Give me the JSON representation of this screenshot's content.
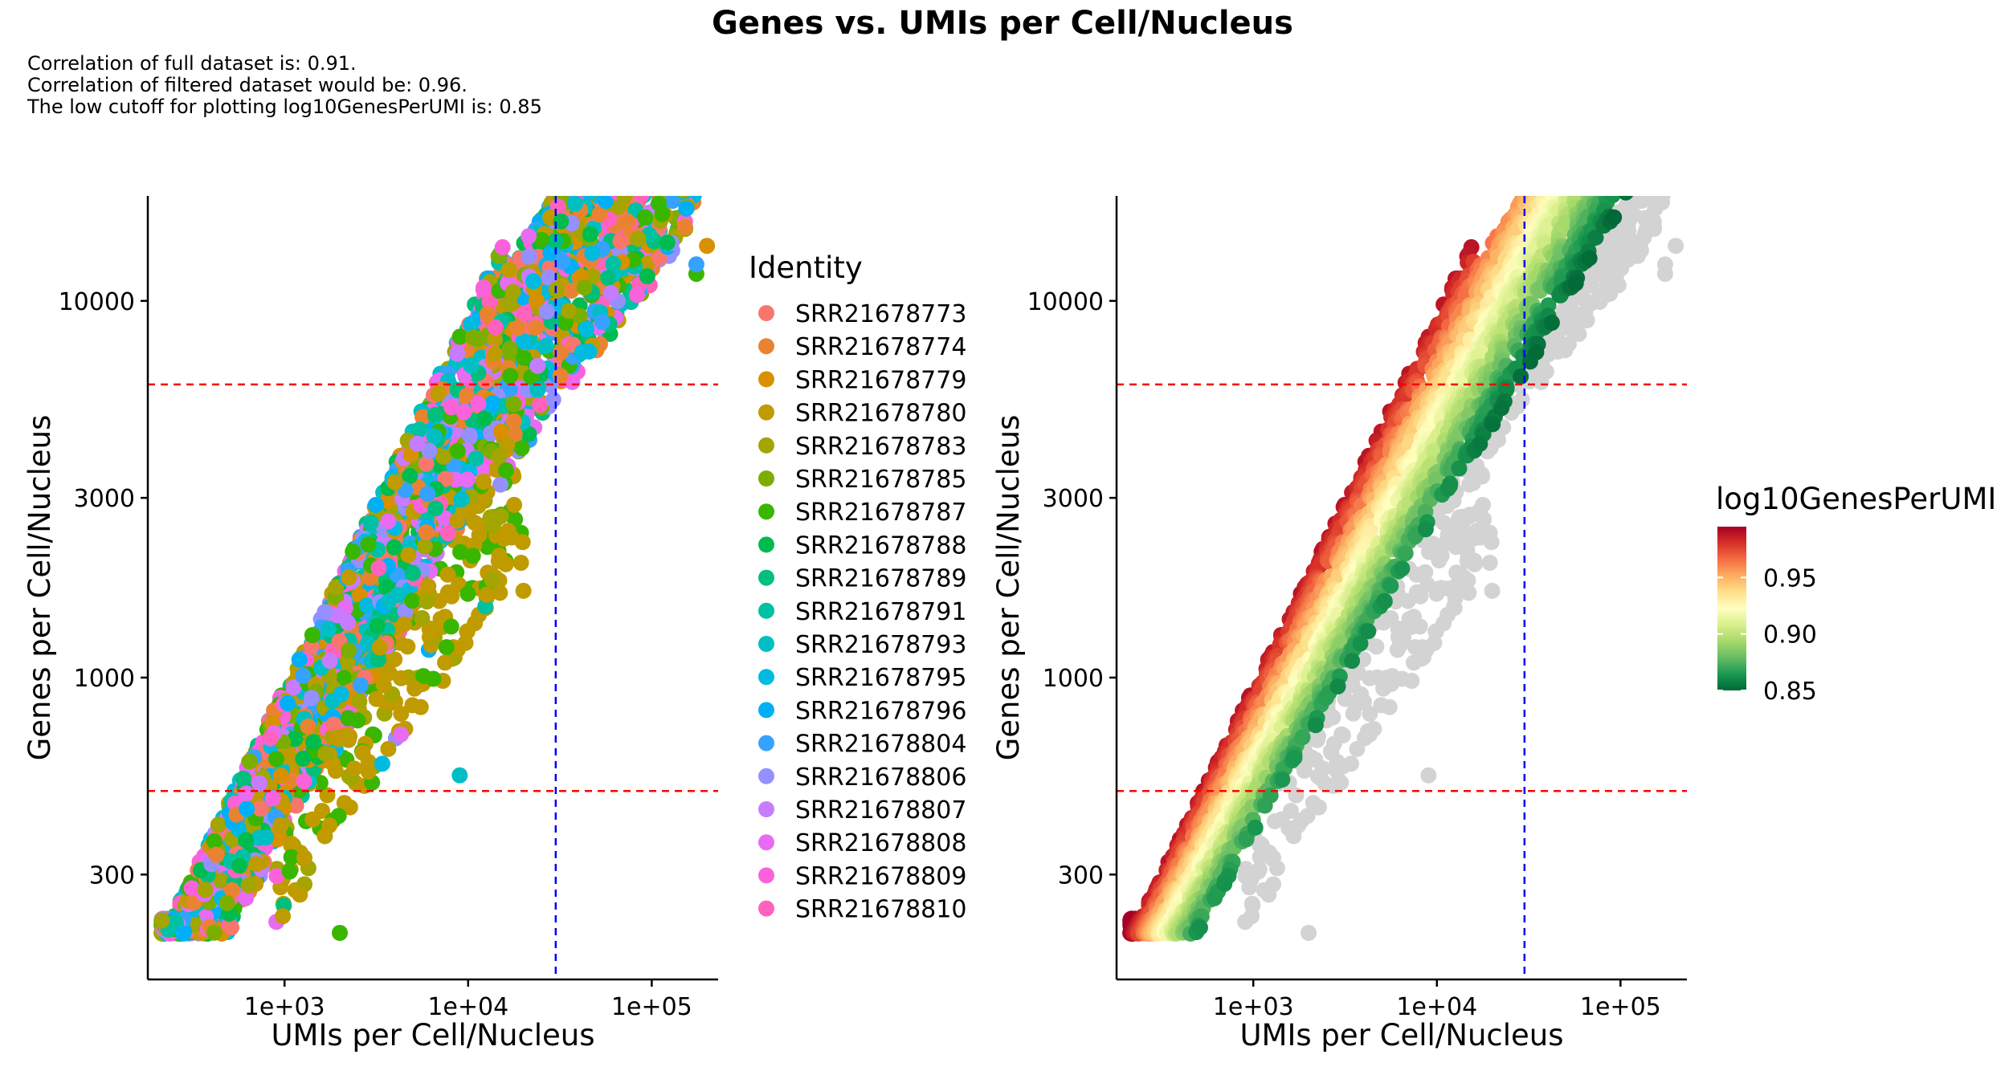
{
  "title": "Genes vs. UMIs per Cell/Nucleus",
  "subtitle_lines": [
    "Correlation of full dataset is: 0.91.",
    "Correlation of filtered dataset would be: 0.96.",
    "The low cutoff for plotting log10GenesPerUMI is: 0.85"
  ],
  "chart_data": [
    {
      "type": "scatter",
      "panel": "left",
      "xlabel": "UMIs per Cell/Nucleus",
      "ylabel": "Genes per Cell/Nucleus",
      "x_scale": "log10",
      "y_scale": "log10",
      "xlim": [
        180,
        230000
      ],
      "ylim": [
        158,
        19000
      ],
      "x_ticks": [
        {
          "value": 1000,
          "label": "1e+03"
        },
        {
          "value": 10000,
          "label": "1e+04"
        },
        {
          "value": 100000,
          "label": "1e+05"
        }
      ],
      "y_ticks": [
        {
          "value": 300,
          "label": "300"
        },
        {
          "value": 1000,
          "label": "1000"
        },
        {
          "value": 3000,
          "label": "3000"
        },
        {
          "value": 10000,
          "label": "10000"
        }
      ],
      "reference_lines": {
        "horizontal": [
          500,
          6000
        ],
        "vertical": [
          30000
        ],
        "h_color": "#ff0000",
        "v_color": "#0000ff"
      },
      "color_by": "Identity",
      "legend_title": "Identity",
      "series": [
        {
          "name": "SRR21678773",
          "color": "#F8766D"
        },
        {
          "name": "SRR21678774",
          "color": "#EA8331"
        },
        {
          "name": "SRR21678779",
          "color": "#D89000"
        },
        {
          "name": "SRR21678780",
          "color": "#C09B00"
        },
        {
          "name": "SRR21678783",
          "color": "#A3A500"
        },
        {
          "name": "SRR21678785",
          "color": "#7CAE00"
        },
        {
          "name": "SRR21678787",
          "color": "#39B600"
        },
        {
          "name": "SRR21678788",
          "color": "#00BB4E"
        },
        {
          "name": "SRR21678789",
          "color": "#00BF7D"
        },
        {
          "name": "SRR21678791",
          "color": "#00C1A3"
        },
        {
          "name": "SRR21678793",
          "color": "#00BFC4"
        },
        {
          "name": "SRR21678795",
          "color": "#00BAE0"
        },
        {
          "name": "SRR21678796",
          "color": "#00B0F6"
        },
        {
          "name": "SRR21678804",
          "color": "#35A2FF"
        },
        {
          "name": "SRR21678806",
          "color": "#9590FF"
        },
        {
          "name": "SRR21678807",
          "color": "#C77CFF"
        },
        {
          "name": "SRR21678808",
          "color": "#E76BF3"
        },
        {
          "name": "SRR21678809",
          "color": "#FA62DB"
        },
        {
          "name": "SRR21678810",
          "color": "#FF62BC"
        }
      ],
      "notable_points": [
        {
          "x": 200000,
          "y": 14000,
          "series": "SRR21678779"
        },
        {
          "x": 110000,
          "y": 13000,
          "series": "SRR21678773"
        },
        {
          "x": 175000,
          "y": 12500,
          "series": "SRR21678804"
        },
        {
          "x": 175000,
          "y": 11800,
          "series": "SRR21678787"
        },
        {
          "x": 20000,
          "y": 1700,
          "series": "SRR21678780"
        },
        {
          "x": 9000,
          "y": 550,
          "series": "SRR21678793"
        },
        {
          "x": 2000,
          "y": 210,
          "series": "SRR21678787"
        }
      ]
    },
    {
      "type": "scatter",
      "panel": "right",
      "xlabel": "UMIs per Cell/Nucleus",
      "ylabel": "Genes per Cell/Nucleus",
      "x_scale": "log10",
      "y_scale": "log10",
      "xlim": [
        180,
        230000
      ],
      "ylim": [
        158,
        19000
      ],
      "x_ticks": [
        {
          "value": 1000,
          "label": "1e+03"
        },
        {
          "value": 10000,
          "label": "1e+04"
        },
        {
          "value": 100000,
          "label": "1e+05"
        }
      ],
      "y_ticks": [
        {
          "value": 300,
          "label": "300"
        },
        {
          "value": 1000,
          "label": "1000"
        },
        {
          "value": 3000,
          "label": "3000"
        },
        {
          "value": 10000,
          "label": "10000"
        }
      ],
      "reference_lines": {
        "horizontal": [
          500,
          6000
        ],
        "vertical": [
          30000
        ],
        "h_color": "#ff0000",
        "v_color": "#0000ff"
      },
      "color_by": "log10GenesPerUMI",
      "legend_title": "log10GenesPerUMI",
      "colorbar": {
        "range": [
          0.85,
          0.995
        ],
        "ticks": [
          {
            "value": 0.85,
            "label": "0.85"
          },
          {
            "value": 0.9,
            "label": "0.90"
          },
          {
            "value": 0.95,
            "label": "0.95"
          }
        ],
        "colors": [
          "#006837",
          "#1a9850",
          "#66bd63",
          "#a6d96a",
          "#d9ef8b",
          "#ffffbf",
          "#fee08b",
          "#fdae61",
          "#f46d43",
          "#d73027",
          "#a50026"
        ]
      },
      "below_cutoff_color": "#d3d3d3",
      "cutoff": 0.85,
      "notable_points": [
        {
          "x": 200000,
          "y": 14000,
          "value": "below cutoff"
        },
        {
          "x": 50000,
          "y": 10200,
          "value": 0.85
        }
      ]
    }
  ]
}
